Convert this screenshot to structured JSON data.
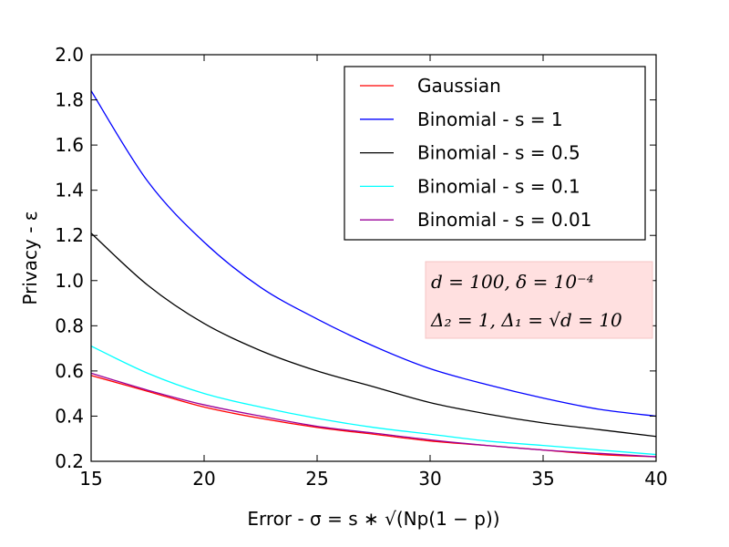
{
  "chart_data": {
    "type": "line",
    "xlabel": "Error - σ = s ∗ √(Np(1 − p))",
    "ylabel": "Privacy - ε",
    "xlim": [
      15,
      40
    ],
    "ylim": [
      0.2,
      2.0
    ],
    "x_ticks": [
      15,
      20,
      25,
      30,
      35,
      40
    ],
    "y_ticks": [
      0.2,
      0.4,
      0.6,
      0.8,
      1.0,
      1.2,
      1.4,
      1.6,
      1.8,
      2.0
    ],
    "x_tick_labels": [
      "15",
      "20",
      "25",
      "30",
      "35",
      "40"
    ],
    "y_tick_labels": [
      "0.2",
      "0.4",
      "0.6",
      "0.8",
      "1.0",
      "1.2",
      "1.4",
      "1.6",
      "1.8",
      "2.0"
    ],
    "grid": false,
    "legend_position": "top-right",
    "x": [
      15,
      17.5,
      20,
      22.5,
      25,
      27.5,
      30,
      32.5,
      35,
      37.5,
      40
    ],
    "series": [
      {
        "name": "Gaussian",
        "color": "#ff0000",
        "values": [
          0.58,
          0.51,
          0.44,
          0.39,
          0.35,
          0.32,
          0.29,
          0.27,
          0.25,
          0.23,
          0.22
        ]
      },
      {
        "name": "Binomial - s = 1",
        "color": "#0000ff",
        "values": [
          1.84,
          1.44,
          1.17,
          0.97,
          0.83,
          0.71,
          0.61,
          0.54,
          0.48,
          0.43,
          0.4
        ]
      },
      {
        "name": "Binomial - s = 0.5",
        "color": "#000000",
        "values": [
          1.21,
          0.98,
          0.81,
          0.69,
          0.6,
          0.53,
          0.46,
          0.41,
          0.37,
          0.34,
          0.31
        ]
      },
      {
        "name": "Binomial - s = 0.1",
        "color": "#00ffff",
        "values": [
          0.71,
          0.59,
          0.5,
          0.44,
          0.39,
          0.35,
          0.32,
          0.29,
          0.27,
          0.25,
          0.23
        ]
      },
      {
        "name": "Binomial - s = 0.01",
        "color": "#990099",
        "values": [
          0.59,
          0.515,
          0.45,
          0.4,
          0.355,
          0.325,
          0.295,
          0.27,
          0.25,
          0.235,
          0.22
        ]
      }
    ],
    "annotation": {
      "line1": "d = 100, δ = 10⁻⁴",
      "line2": "Δ₂ = 1, Δ₁ = √d = 10",
      "background": "#ffe0e0"
    }
  }
}
